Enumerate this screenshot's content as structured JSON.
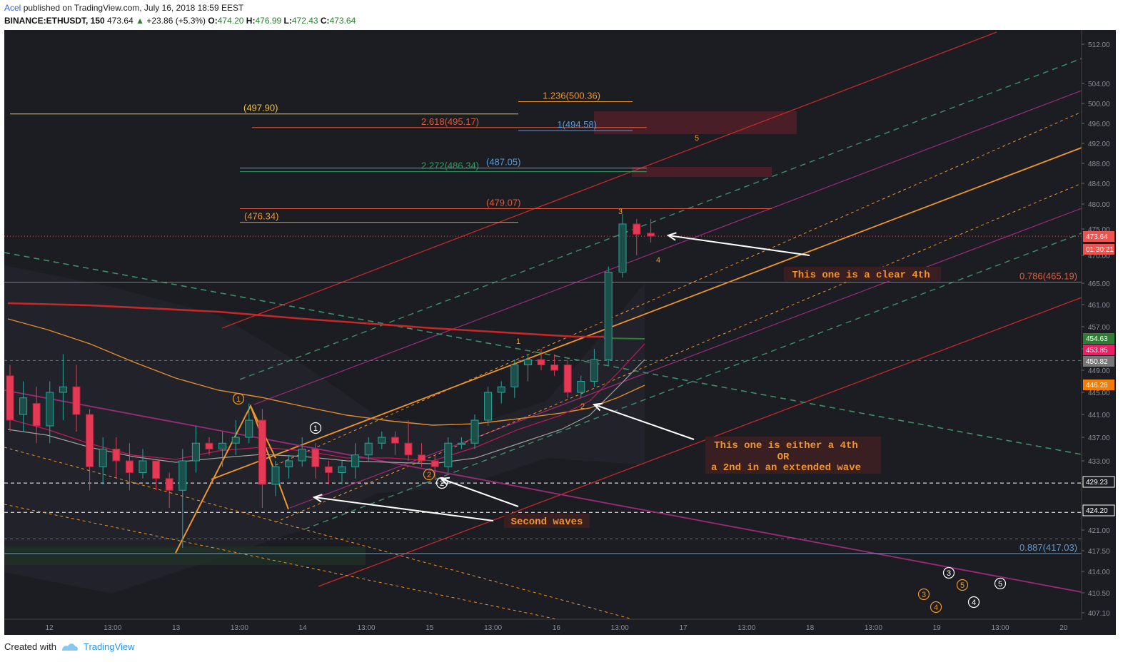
{
  "header": {
    "author": "Acel",
    "published": "published on TradingView.com, July 16, 2018 18:59 EEST",
    "symbol": "BINANCE:ETHUSDT, 150",
    "last": "473.64",
    "change_arrow": "▲",
    "change": "+23.86 (+5.3%)",
    "o_label": "O:",
    "o": "474.20",
    "h_label": "H:",
    "h": "476.99",
    "l_label": "L:",
    "l": "472.43",
    "c_label": "C:",
    "c": "473.64"
  },
  "footer": {
    "created": "Created with",
    "brand": "TradingView"
  },
  "colors": {
    "bg": "#1b1d22",
    "up": "#26a69a",
    "down": "#ef5350",
    "fib_red": "#e05a3a",
    "orange": "#f0952a",
    "purple": "#9c2a79"
  },
  "chart_data": {
    "type": "candlestick",
    "y_axis_ticks": [
      "512.00",
      "504.00",
      "500.00",
      "496.00",
      "492.00",
      "488.00",
      "484.00",
      "480.00",
      "475.00",
      "470.00",
      "465.00",
      "461.00",
      "457.00",
      "453.00",
      "449.00",
      "445.00",
      "441.00",
      "437.00",
      "433.00",
      "429.00",
      "425.00",
      "421.00",
      "417.50",
      "414.00",
      "410.50",
      "407.10"
    ],
    "x_axis_ticks": [
      "12",
      "13:00",
      "13",
      "13:00",
      "14",
      "13:00",
      "15",
      "13:00",
      "16",
      "13:00",
      "17",
      "13:00",
      "18",
      "13:00",
      "19",
      "13:00",
      "20"
    ],
    "price_tags": [
      {
        "value": "473.64",
        "color": "#ef5350"
      },
      {
        "value": "01:30:21",
        "color": "#ef5350"
      },
      {
        "value": "454.63",
        "color": "#2e7d32"
      },
      {
        "value": "453.85",
        "color": "#e91e63"
      },
      {
        "value": "450.82",
        "color": "#777777"
      },
      {
        "value": "446.28",
        "color": "#f57c00"
      },
      {
        "value": "429.23",
        "color": "#ffffff"
      },
      {
        "value": "424.20",
        "color": "#ffffff"
      }
    ],
    "fib_labels": [
      {
        "text": "(497.90)",
        "price": 497.9,
        "color": "#f0c040"
      },
      {
        "text": "1.236(500.36)",
        "price": 500.36,
        "color": "#f0952a"
      },
      {
        "text": "2.618(495.17)",
        "price": 495.17,
        "color": "#e05a3a"
      },
      {
        "text": "1(494.58)",
        "price": 494.58,
        "color": "#5b9bd5"
      },
      {
        "text": "(487.05)",
        "price": 487.05,
        "color": "#5b9bd5"
      },
      {
        "text": "2.272(486.34)",
        "price": 486.34,
        "color": "#2e9e5b"
      },
      {
        "text": "(479.07)",
        "price": 479.07,
        "color": "#e05a3a"
      },
      {
        "text": "(476.34)",
        "price": 476.34,
        "color": "#f0952a"
      },
      {
        "text": "0.786(465.19)",
        "price": 465.19,
        "color": "#e05a3a"
      },
      {
        "text": "0.887(417.03)",
        "price": 417.03,
        "color": "#5b9bd5"
      }
    ],
    "annotations": [
      {
        "text": "This one is a clear 4th"
      },
      {
        "text": "This one is either a 4th"
      },
      {
        "text": "OR"
      },
      {
        "text": "a 2nd in an extended wave"
      },
      {
        "text": "Second waves"
      }
    ],
    "wave_labels": [
      "1",
      "1",
      "2",
      "2",
      "1",
      "2",
      "3",
      "4",
      "5",
      "3",
      "4",
      "5",
      "3",
      "4",
      "5"
    ],
    "candles": [
      {
        "o": 448,
        "h": 450,
        "l": 438,
        "c": 440
      },
      {
        "o": 441,
        "h": 447,
        "l": 438,
        "c": 444
      },
      {
        "o": 443,
        "h": 446,
        "l": 436,
        "c": 439
      },
      {
        "o": 439,
        "h": 447,
        "l": 436,
        "c": 445
      },
      {
        "o": 445,
        "h": 452,
        "l": 440,
        "c": 446
      },
      {
        "o": 446,
        "h": 450,
        "l": 438,
        "c": 441
      },
      {
        "o": 441,
        "h": 442,
        "l": 428,
        "c": 432
      },
      {
        "o": 432,
        "h": 437,
        "l": 429,
        "c": 435
      },
      {
        "o": 435,
        "h": 437,
        "l": 430,
        "c": 433
      },
      {
        "o": 433,
        "h": 436,
        "l": 428,
        "c": 431
      },
      {
        "o": 431,
        "h": 435,
        "l": 430,
        "c": 433
      },
      {
        "o": 433,
        "h": 433,
        "l": 428,
        "c": 430
      },
      {
        "o": 430,
        "h": 431,
        "l": 425,
        "c": 428
      },
      {
        "o": 428,
        "h": 435,
        "l": 418,
        "c": 433
      },
      {
        "o": 433,
        "h": 439,
        "l": 431,
        "c": 436
      },
      {
        "o": 436,
        "h": 437,
        "l": 434,
        "c": 435
      },
      {
        "o": 435,
        "h": 438,
        "l": 432,
        "c": 436
      },
      {
        "o": 436,
        "h": 440,
        "l": 434,
        "c": 437
      },
      {
        "o": 437,
        "h": 443,
        "l": 436,
        "c": 440
      },
      {
        "o": 440,
        "h": 442,
        "l": 425,
        "c": 429
      },
      {
        "o": 429,
        "h": 433,
        "l": 427,
        "c": 432
      },
      {
        "o": 432,
        "h": 434,
        "l": 430,
        "c": 433
      },
      {
        "o": 433,
        "h": 437,
        "l": 432,
        "c": 435
      },
      {
        "o": 435,
        "h": 436,
        "l": 430,
        "c": 432
      },
      {
        "o": 432,
        "h": 433,
        "l": 429,
        "c": 431
      },
      {
        "o": 431,
        "h": 433,
        "l": 429,
        "c": 432
      },
      {
        "o": 432,
        "h": 436,
        "l": 430,
        "c": 434
      },
      {
        "o": 434,
        "h": 437,
        "l": 433,
        "c": 436
      },
      {
        "o": 436,
        "h": 438,
        "l": 435,
        "c": 437
      },
      {
        "o": 437,
        "h": 438,
        "l": 434,
        "c": 436
      },
      {
        "o": 436,
        "h": 440,
        "l": 433,
        "c": 434
      },
      {
        "o": 434,
        "h": 436,
        "l": 432,
        "c": 433
      },
      {
        "o": 433,
        "h": 434,
        "l": 430,
        "c": 432
      },
      {
        "o": 432,
        "h": 437,
        "l": 431,
        "c": 436
      },
      {
        "o": 436,
        "h": 437,
        "l": 435,
        "c": 436
      },
      {
        "o": 436,
        "h": 441,
        "l": 435,
        "c": 440
      },
      {
        "o": 440,
        "h": 446,
        "l": 439,
        "c": 445
      },
      {
        "o": 445,
        "h": 447,
        "l": 443,
        "c": 446
      },
      {
        "o": 446,
        "h": 451,
        "l": 444,
        "c": 450
      },
      {
        "o": 450,
        "h": 452,
        "l": 447,
        "c": 451
      },
      {
        "o": 451,
        "h": 453,
        "l": 449,
        "c": 450
      },
      {
        "o": 450,
        "h": 452,
        "l": 448,
        "c": 449
      },
      {
        "o": 450,
        "h": 451,
        "l": 444,
        "c": 445
      },
      {
        "o": 445,
        "h": 448,
        "l": 444,
        "c": 447
      },
      {
        "o": 447,
        "h": 453,
        "l": 446,
        "c": 451
      },
      {
        "o": 451,
        "h": 468,
        "l": 450,
        "c": 467
      },
      {
        "o": 467,
        "h": 478,
        "l": 466,
        "c": 476
      },
      {
        "o": 476,
        "h": 477,
        "l": 470,
        "c": 474
      },
      {
        "o": 474.2,
        "h": 476.99,
        "l": 472.43,
        "c": 473.64
      }
    ]
  }
}
